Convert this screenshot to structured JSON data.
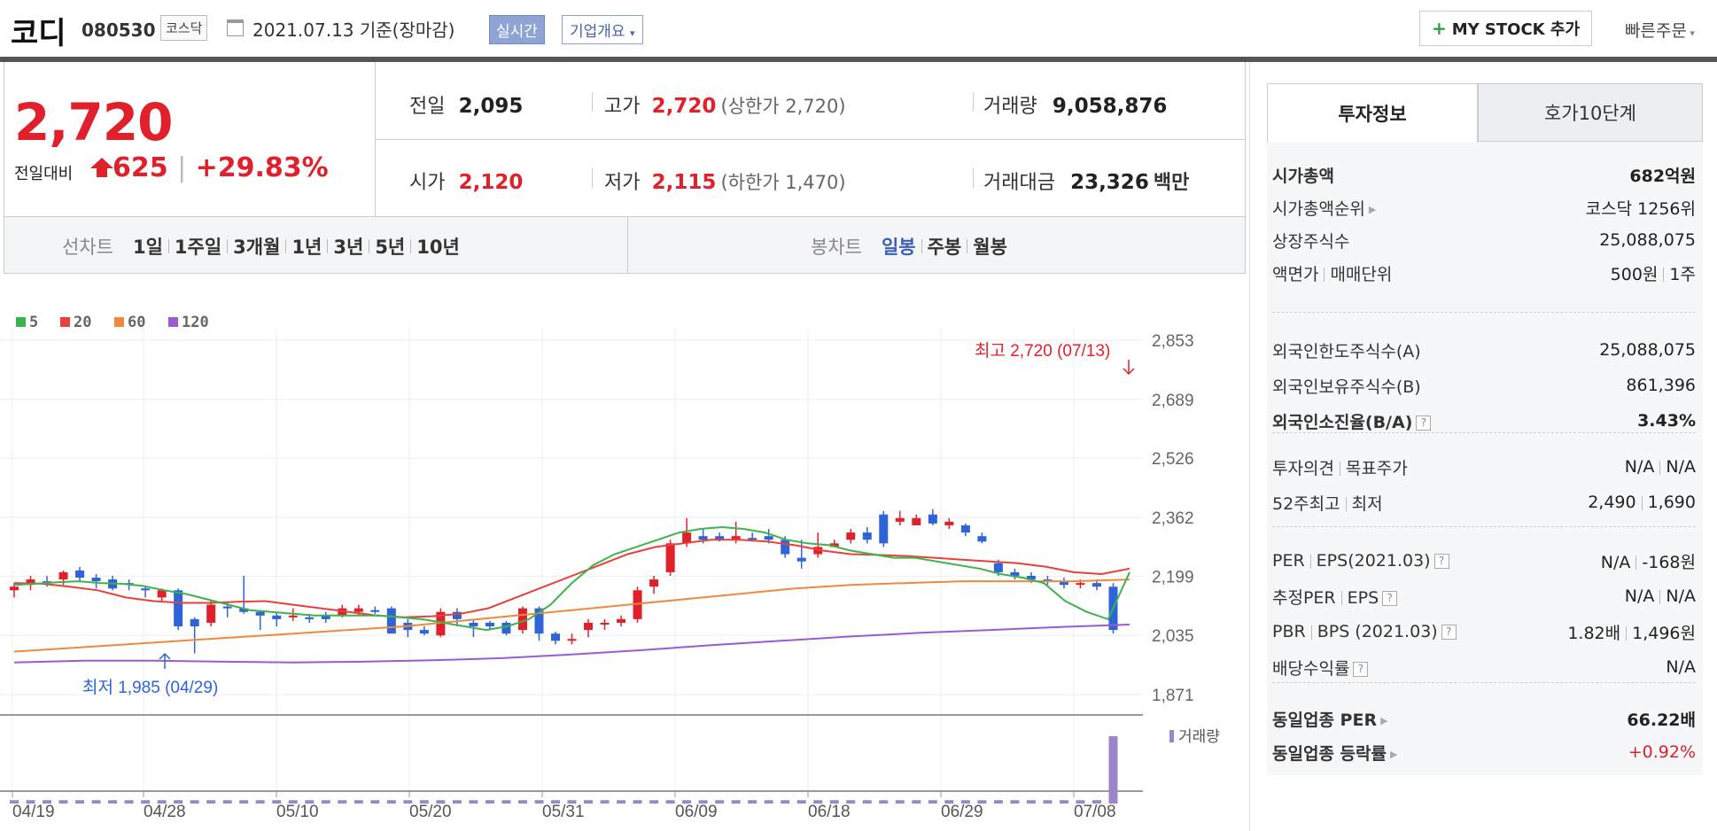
{
  "header": {
    "company": "코디",
    "code": "080530",
    "market": "코스닥",
    "date": "2021.07.13",
    "date_suffix": "기준(장마감)",
    "realtime_label": "실시간",
    "corp_info_label": "기업개요",
    "my_stock_label": "MY STOCK 추가",
    "quick_order_label": "빠른주문"
  },
  "price": {
    "current": "2,720",
    "change_label": "전일대비",
    "change": "625",
    "change_pct": "+29.83%",
    "direction": "up"
  },
  "summary": {
    "prev_label": "전일",
    "prev": "2,095",
    "high_label": "고가",
    "high": "2,720",
    "upper_limit": "(상한가 2,720)",
    "volume_label": "거래량",
    "volume": "9,058,876",
    "open_label": "시가",
    "open": "2,120",
    "low_label": "저가",
    "low": "2,115",
    "lower_limit": "(하한가 1,470)",
    "amount_label": "거래대금",
    "amount": "23,326",
    "amount_unit": "백만"
  },
  "range_bar": {
    "line_label": "선차트",
    "line_ranges": [
      "1일",
      "1주일",
      "3개월",
      "1년",
      "3년",
      "5년",
      "10년"
    ],
    "candle_label": "봉차트",
    "candle_ranges": [
      "일봉",
      "주봉",
      "월봉"
    ],
    "active_candle": "일봉"
  },
  "chart_data": {
    "type": "candlestick",
    "legend": [
      "5",
      "20",
      "60",
      "120"
    ],
    "legend_colors": [
      "#3cb44b",
      "#e8403c",
      "#f0883e",
      "#9c5bd2"
    ],
    "y_ticks": [
      "2,853",
      "2,689",
      "2,526",
      "2,362",
      "2,199",
      "2,035",
      "1,871"
    ],
    "ylim": [
      1871,
      2853
    ],
    "x_labels": [
      "04/19",
      "04/28",
      "05/10",
      "05/20",
      "05/31",
      "06/09",
      "06/18",
      "06/29",
      "07/08"
    ],
    "high_annotation": "최고 2,720 (07/13)",
    "low_annotation": "최저 1,985 (04/29)",
    "volume_label": "거래량",
    "candles": [
      [
        2160,
        2170,
        2140,
        2180
      ],
      [
        2175,
        2190,
        2160,
        2200
      ],
      [
        2185,
        2180,
        2170,
        2200
      ],
      [
        2190,
        2210,
        2175,
        2215
      ],
      [
        2215,
        2195,
        2185,
        2225
      ],
      [
        2195,
        2185,
        2165,
        2205
      ],
      [
        2190,
        2165,
        2160,
        2200
      ],
      [
        2180,
        2175,
        2160,
        2190
      ],
      [
        2165,
        2160,
        2140,
        2170
      ],
      [
        2140,
        2160,
        2130,
        2165
      ],
      [
        2160,
        2060,
        2050,
        2165
      ],
      [
        2080,
        2060,
        1985,
        2085
      ],
      [
        2070,
        2120,
        2060,
        2130
      ],
      [
        2115,
        2110,
        2085,
        2125
      ],
      [
        2110,
        2100,
        2095,
        2200
      ],
      [
        2100,
        2090,
        2050,
        2105
      ],
      [
        2090,
        2080,
        2060,
        2100
      ],
      [
        2085,
        2090,
        2075,
        2110
      ],
      [
        2085,
        2080,
        2070,
        2095
      ],
      [
        2090,
        2080,
        2070,
        2100
      ],
      [
        2090,
        2110,
        2085,
        2120
      ],
      [
        2100,
        2110,
        2090,
        2120
      ],
      [
        2105,
        2100,
        2095,
        2115
      ],
      [
        2110,
        2040,
        2040,
        2115
      ],
      [
        2070,
        2050,
        2030,
        2080
      ],
      [
        2050,
        2040,
        2035,
        2060
      ],
      [
        2035,
        2100,
        2030,
        2110
      ],
      [
        2100,
        2080,
        2060,
        2110
      ],
      [
        2070,
        2060,
        2030,
        2080
      ],
      [
        2070,
        2060,
        2050,
        2075
      ],
      [
        2070,
        2040,
        2035,
        2075
      ],
      [
        2050,
        2110,
        2040,
        2115
      ],
      [
        2110,
        2040,
        2020,
        2115
      ],
      [
        2040,
        2020,
        2010,
        2045
      ],
      [
        2020,
        2025,
        2010,
        2040
      ],
      [
        2050,
        2070,
        2030,
        2080
      ],
      [
        2065,
        2070,
        2050,
        2080
      ],
      [
        2070,
        2080,
        2060,
        2090
      ],
      [
        2080,
        2160,
        2070,
        2170
      ],
      [
        2170,
        2190,
        2150,
        2200
      ],
      [
        2210,
        2290,
        2200,
        2300
      ],
      [
        2290,
        2320,
        2280,
        2360
      ],
      [
        2310,
        2300,
        2290,
        2330
      ],
      [
        2310,
        2300,
        2295,
        2320
      ],
      [
        2300,
        2310,
        2290,
        2350
      ],
      [
        2305,
        2300,
        2295,
        2320
      ],
      [
        2310,
        2300,
        2290,
        2330
      ],
      [
        2300,
        2260,
        2250,
        2310
      ],
      [
        2250,
        2240,
        2220,
        2300
      ],
      [
        2260,
        2280,
        2250,
        2320
      ],
      [
        2280,
        2290,
        2280,
        2300
      ],
      [
        2300,
        2320,
        2290,
        2330
      ],
      [
        2320,
        2300,
        2290,
        2335
      ],
      [
        2370,
        2290,
        2280,
        2380
      ],
      [
        2350,
        2360,
        2340,
        2380
      ],
      [
        2340,
        2360,
        2340,
        2370
      ],
      [
        2370,
        2345,
        2340,
        2385
      ],
      [
        2340,
        2350,
        2330,
        2360
      ],
      [
        2340,
        2320,
        2310,
        2345
      ],
      [
        2310,
        2295,
        2290,
        2320
      ]
    ],
    "closing_tail": [
      2290,
      2280,
      2280,
      2260,
      2240,
      2245,
      2255,
      2250,
      2240,
      2235,
      2210,
      2200,
      2190,
      2185,
      2175,
      2180,
      2170,
      2050,
      2020,
      2120,
      2720
    ],
    "ma5": [
      2175,
      2178,
      2182,
      2185,
      2180,
      2178,
      2172,
      2160,
      2150,
      2135,
      2120,
      2105,
      2100,
      2095,
      2090,
      2090,
      2090,
      2090,
      2085,
      2080,
      2070,
      2060,
      2050,
      2060,
      2080,
      2120,
      2180,
      2230,
      2260,
      2280,
      2300,
      2320,
      2330,
      2335,
      2330,
      2320,
      2300,
      2290,
      2285,
      2270,
      2260,
      2250,
      2250,
      2240,
      2230,
      2220,
      2205,
      2195,
      2180,
      2130,
      2100,
      2080,
      2210
    ],
    "ma20": [
      2180,
      2178,
      2170,
      2160,
      2140,
      2130,
      2125,
      2125,
      2128,
      2130,
      2120,
      2110,
      2100,
      2090,
      2085,
      2088,
      2095,
      2110,
      2140,
      2170,
      2200,
      2230,
      2260,
      2280,
      2290,
      2300,
      2300,
      2295,
      2285,
      2270,
      2260,
      2258,
      2255,
      2250,
      2245,
      2240,
      2235,
      2225,
      2210,
      2205,
      2220
    ],
    "ma60": [
      1990,
      2000,
      2010,
      2020,
      2030,
      2040,
      2050,
      2060,
      2075,
      2090,
      2105,
      2120,
      2135,
      2150,
      2165,
      2175,
      2180,
      2185,
      2185,
      2185,
      2190
    ],
    "ma120": [
      1960,
      1965,
      1965,
      1962,
      1960,
      1962,
      1966,
      1972,
      1982,
      1994,
      2008,
      2020,
      2032,
      2042,
      2050,
      2058,
      2065
    ],
    "volume_last": 1.0,
    "volume_base": 0.05
  },
  "info": {
    "tab_invest": "투자정보",
    "tab_hoga": "호가10단계",
    "rows1": [
      {
        "label": "시가총액",
        "value": "682억원",
        "bold": true
      },
      {
        "label": "시가총액순위",
        "value": "코스닥 1256위"
      },
      {
        "label": "상장주식수",
        "value": "25,088,075"
      },
      {
        "label": "액면가",
        "label2": "매매단위",
        "value": "500원",
        "value2": "1주"
      }
    ],
    "rows2": [
      {
        "label": "외국인한도주식수(A)",
        "value": "25,088,075"
      },
      {
        "label": "외국인보유주식수(B)",
        "value": "861,396"
      },
      {
        "label": "외국인소진율(B/A)",
        "value": "3.43%"
      }
    ],
    "rows3": [
      {
        "label": "투자의견",
        "label2": "목표주가",
        "value": "N/A",
        "value2": "N/A"
      },
      {
        "label": "52주최고",
        "label2": "최저",
        "value": "2,490",
        "value2": "1,690"
      }
    ],
    "rows4": [
      {
        "label": "PER",
        "label2": "EPS(2021.03)",
        "value": "N/A",
        "value2": "-168원"
      },
      {
        "label": "추정PER",
        "label2": "EPS",
        "value": "N/A",
        "value2": "N/A"
      },
      {
        "label": "PBR",
        "label2": "BPS (2021.03)",
        "value": "1.82배",
        "value2": "1,496원"
      },
      {
        "label": "배당수익률",
        "value": "N/A"
      }
    ],
    "rows5": [
      {
        "label": "동일업종 PER",
        "value": "66.22배"
      },
      {
        "label": "동일업종 등락률",
        "value": "+0.92%"
      }
    ]
  }
}
